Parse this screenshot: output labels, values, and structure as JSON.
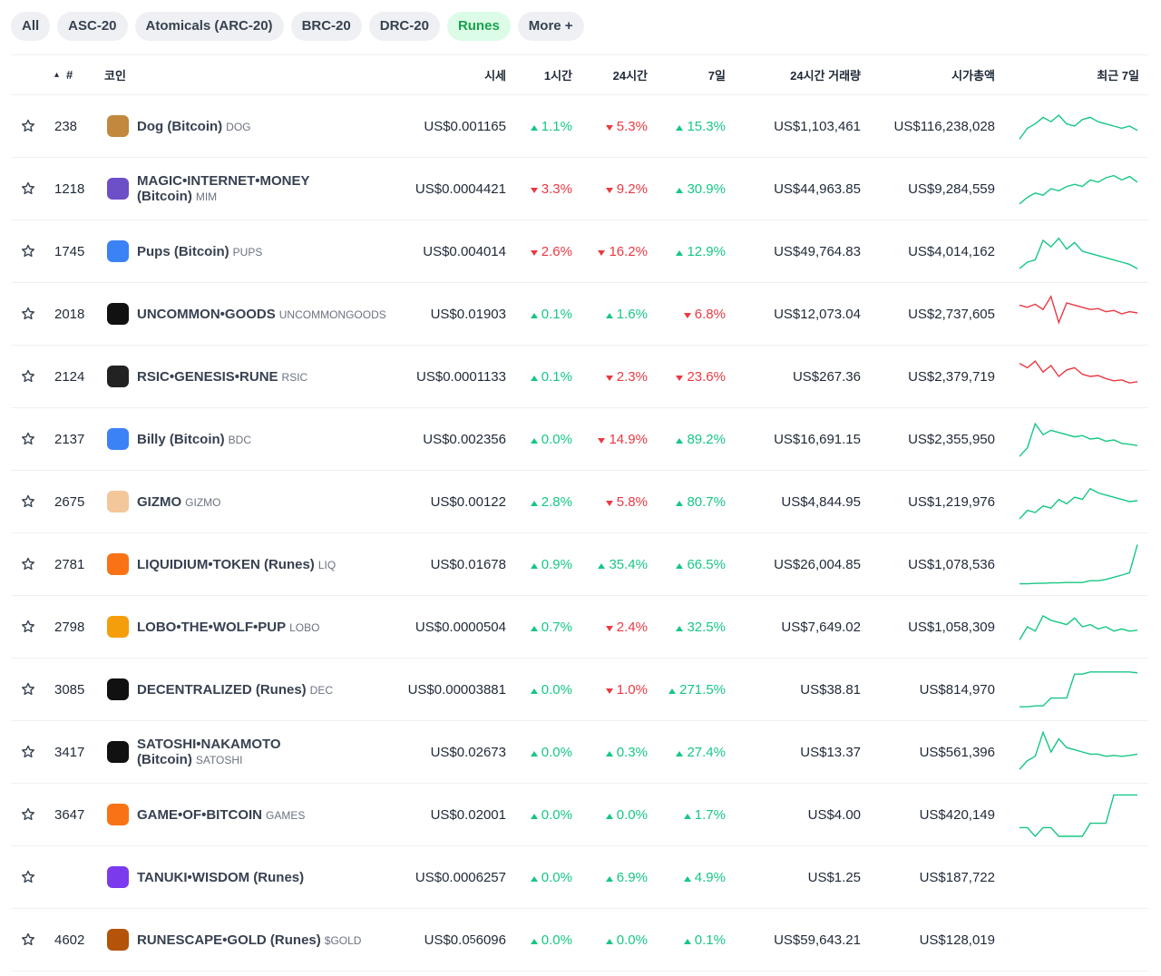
{
  "tabs": [
    "All",
    "ASC-20",
    "Atomicals (ARC-20)",
    "BRC-20",
    "DRC-20",
    "Runes",
    "More +"
  ],
  "active_tab": 5,
  "headers": {
    "rank": "#",
    "coin": "코인",
    "price": "시세",
    "change_1h": "1시간",
    "change_24h": "24시간",
    "change_7d": "7일",
    "volume": "24시간 거래량",
    "market_cap": "시가총액",
    "chart": "최근 7일"
  },
  "rows": [
    {
      "rank": "238",
      "name": "Dog (Bitcoin)",
      "symbol": "DOG",
      "price": "US$0.001165",
      "change_1h": {
        "text": "1.1%",
        "dir": "up"
      },
      "change_24h": {
        "text": "5.3%",
        "dir": "down"
      },
      "change_7d": {
        "text": "15.3%",
        "dir": "up"
      },
      "volume": "US$1,103,461",
      "market_cap": "US$116,238,028",
      "sparkline": {
        "color": "#16c784",
        "values": [
          20,
          45,
          55,
          70,
          60,
          75,
          55,
          50,
          65,
          70,
          60,
          55,
          50,
          45,
          50,
          40
        ]
      }
    },
    {
      "rank": "1218",
      "name": "MAGIC•INTERNET•MONEY (Bitcoin)",
      "symbol": "MIM",
      "price": "US$0.0004421",
      "change_1h": {
        "text": "3.3%",
        "dir": "down"
      },
      "change_24h": {
        "text": "9.2%",
        "dir": "down"
      },
      "change_7d": {
        "text": "30.9%",
        "dir": "up"
      },
      "volume": "US$44,963.85",
      "market_cap": "US$9,284,559",
      "sparkline": {
        "color": "#16c784",
        "values": [
          15,
          30,
          40,
          35,
          50,
          45,
          55,
          60,
          55,
          70,
          65,
          75,
          80,
          70,
          78,
          65
        ]
      }
    },
    {
      "rank": "1745",
      "name": "Pups (Bitcoin)",
      "symbol": "PUPS",
      "price": "US$0.004014",
      "change_1h": {
        "text": "2.6%",
        "dir": "down"
      },
      "change_24h": {
        "text": "16.2%",
        "dir": "down"
      },
      "change_7d": {
        "text": "12.9%",
        "dir": "up"
      },
      "volume": "US$49,764.83",
      "market_cap": "US$4,014,162",
      "sparkline": {
        "color": "#16c784",
        "values": [
          10,
          25,
          30,
          75,
          60,
          80,
          55,
          70,
          50,
          45,
          40,
          35,
          30,
          25,
          20,
          10
        ]
      }
    },
    {
      "rank": "2018",
      "name": "UNCOMMON•GOODS",
      "symbol": "UNCOMMONGOODS",
      "price": "US$0.01903",
      "change_1h": {
        "text": "0.1%",
        "dir": "up"
      },
      "change_24h": {
        "text": "1.6%",
        "dir": "up"
      },
      "change_7d": {
        "text": "6.8%",
        "dir": "down"
      },
      "volume": "US$12,073.04",
      "market_cap": "US$2,737,605",
      "sparkline": {
        "color": "#ea3943",
        "values": [
          70,
          65,
          72,
          60,
          90,
          30,
          75,
          70,
          65,
          60,
          62,
          55,
          58,
          50,
          55,
          52
        ]
      }
    },
    {
      "rank": "2124",
      "name": "RSIC•GENESIS•RUNE",
      "symbol": "RSIC",
      "price": "US$0.0001133",
      "change_1h": {
        "text": "0.1%",
        "dir": "up"
      },
      "change_24h": {
        "text": "2.3%",
        "dir": "down"
      },
      "change_7d": {
        "text": "23.6%",
        "dir": "down"
      },
      "volume": "US$267.36",
      "market_cap": "US$2,379,719",
      "sparkline": {
        "color": "#ea3943",
        "values": [
          80,
          70,
          85,
          60,
          75,
          50,
          65,
          70,
          55,
          50,
          52,
          45,
          40,
          42,
          35,
          38
        ]
      }
    },
    {
      "rank": "2137",
      "name": "Billy (Bitcoin)",
      "symbol": "BDC",
      "price": "US$0.002356",
      "change_1h": {
        "text": "0.0%",
        "dir": "up"
      },
      "change_24h": {
        "text": "14.9%",
        "dir": "down"
      },
      "change_7d": {
        "text": "89.2%",
        "dir": "up"
      },
      "volume": "US$16,691.15",
      "market_cap": "US$2,355,950",
      "sparkline": {
        "color": "#16c784",
        "values": [
          10,
          30,
          85,
          60,
          70,
          65,
          60,
          55,
          58,
          50,
          52,
          45,
          48,
          40,
          38,
          35
        ]
      }
    },
    {
      "rank": "2675",
      "name": "GIZMO",
      "symbol": "GIZMO",
      "price": "US$0.00122",
      "change_1h": {
        "text": "2.8%",
        "dir": "up"
      },
      "change_24h": {
        "text": "5.8%",
        "dir": "down"
      },
      "change_7d": {
        "text": "80.7%",
        "dir": "up"
      },
      "volume": "US$4,844.95",
      "market_cap": "US$1,219,976",
      "sparkline": {
        "color": "#16c784",
        "values": [
          10,
          30,
          25,
          40,
          35,
          55,
          45,
          60,
          55,
          80,
          70,
          65,
          60,
          55,
          50,
          52
        ]
      }
    },
    {
      "rank": "2781",
      "name": "LIQUIDIUM•TOKEN (Runes)",
      "symbol": "LIQ",
      "price": "US$0.01678",
      "change_1h": {
        "text": "0.9%",
        "dir": "up"
      },
      "change_24h": {
        "text": "35.4%",
        "dir": "up"
      },
      "change_7d": {
        "text": "66.5%",
        "dir": "up"
      },
      "volume": "US$26,004.85",
      "market_cap": "US$1,078,536",
      "sparkline": {
        "color": "#16c784",
        "values": [
          5,
          5,
          6,
          6,
          7,
          7,
          8,
          8,
          8,
          12,
          12,
          15,
          20,
          25,
          30,
          95
        ]
      }
    },
    {
      "rank": "2798",
      "name": "LOBO•THE•WOLF•PUP",
      "symbol": "LOBO",
      "price": "US$0.0000504",
      "change_1h": {
        "text": "0.7%",
        "dir": "up"
      },
      "change_24h": {
        "text": "2.4%",
        "dir": "down"
      },
      "change_7d": {
        "text": "32.5%",
        "dir": "up"
      },
      "volume": "US$7,649.02",
      "market_cap": "US$1,058,309",
      "sparkline": {
        "color": "#16c784",
        "values": [
          20,
          50,
          40,
          75,
          65,
          60,
          55,
          70,
          50,
          55,
          45,
          50,
          40,
          45,
          40,
          42
        ]
      }
    },
    {
      "rank": "3085",
      "name": "DECENTRALIZED (Runes)",
      "symbol": "DEC",
      "price": "US$0.00003881",
      "change_1h": {
        "text": "0.0%",
        "dir": "up"
      },
      "change_24h": {
        "text": "1.0%",
        "dir": "down"
      },
      "change_7d": {
        "text": "271.5%",
        "dir": "up"
      },
      "volume": "US$38.81",
      "market_cap": "US$814,970",
      "sparkline": {
        "color": "#16c784",
        "values": [
          10,
          10,
          12,
          12,
          30,
          30,
          30,
          85,
          85,
          90,
          90,
          90,
          90,
          90,
          90,
          88
        ]
      }
    },
    {
      "rank": "3417",
      "name": "SATOSHI•NAKAMOTO (Bitcoin)",
      "symbol": "SATOSHI",
      "price": "US$0.02673",
      "change_1h": {
        "text": "0.0%",
        "dir": "up"
      },
      "change_24h": {
        "text": "0.3%",
        "dir": "up"
      },
      "change_7d": {
        "text": "27.4%",
        "dir": "up"
      },
      "volume": "US$13.37",
      "market_cap": "US$561,396",
      "sparkline": {
        "color": "#16c784",
        "values": [
          10,
          30,
          40,
          95,
          50,
          80,
          60,
          55,
          50,
          45,
          45,
          40,
          42,
          40,
          42,
          45
        ]
      }
    },
    {
      "rank": "3647",
      "name": "GAME•OF•BITCOIN",
      "symbol": "GAMES",
      "price": "US$0.02001",
      "change_1h": {
        "text": "0.0%",
        "dir": "up"
      },
      "change_24h": {
        "text": "0.0%",
        "dir": "up"
      },
      "change_7d": {
        "text": "1.7%",
        "dir": "up"
      },
      "volume": "US$4.00",
      "market_cap": "US$420,149",
      "sparkline": {
        "color": "#16c784",
        "values": [
          20,
          20,
          0,
          20,
          20,
          0,
          0,
          0,
          0,
          30,
          30,
          30,
          95,
          95,
          95,
          95
        ]
      }
    },
    {
      "rank": null,
      "name": "TANUKI•WISDOM (Runes)",
      "price": "US$0.0006257",
      "change_1h": {
        "text": "0.0%",
        "dir": "up"
      },
      "change_24h": {
        "text": "6.9%",
        "dir": "up"
      },
      "change_7d": {
        "text": "4.9%",
        "dir": "up"
      },
      "volume": "US$1.25",
      "market_cap": "US$187,722"
    },
    {
      "rank": "4602",
      "name": "RUNESCAPE•GOLD (Runes)",
      "symbol": "$GOLD",
      "price": [
        "US$0.0",
        "5",
        "6096"
      ],
      "change_1h": {
        "text": "0.0%",
        "dir": "up"
      },
      "change_24h": {
        "text": "0.0%",
        "dir": "up"
      },
      "change_7d": {
        "text": "0.1%",
        "dir": "up"
      },
      "volume": "US$59,643.21",
      "market_cap": "US$128,019"
    }
  ]
}
